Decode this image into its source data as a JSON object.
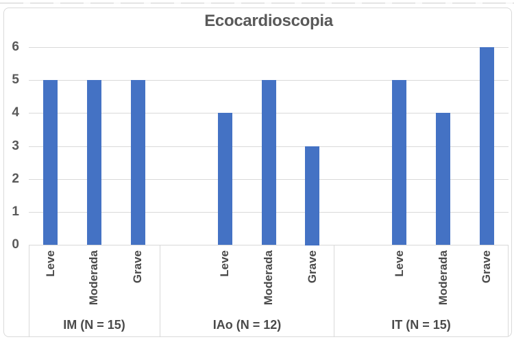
{
  "chart_data": {
    "type": "bar",
    "title": "Ecocardioscopia",
    "legend": "none",
    "grid": "horizontal",
    "bar_color": "#4472C4",
    "gridline_color": "#D9D9D9",
    "axis_text_color": "#595959",
    "label_text_color": "#4a4a4a",
    "y_axis": {
      "min": 0,
      "max": 6,
      "step": 1,
      "ticks": [
        0,
        1,
        2,
        3,
        4,
        5,
        6
      ]
    },
    "groups": [
      {
        "label": "IM (N = 15)",
        "categories": [
          "Leve",
          "Moderada",
          "Grave"
        ],
        "values": [
          5,
          5,
          5
        ]
      },
      {
        "label": "IAo (N = 12)",
        "categories": [
          "Leve",
          "Moderada",
          "Grave"
        ],
        "values": [
          4,
          5,
          3
        ]
      },
      {
        "label": "IT (N = 15)",
        "categories": [
          "Leve",
          "Moderada",
          "Grave"
        ],
        "values": [
          5,
          4,
          6
        ]
      }
    ]
  }
}
